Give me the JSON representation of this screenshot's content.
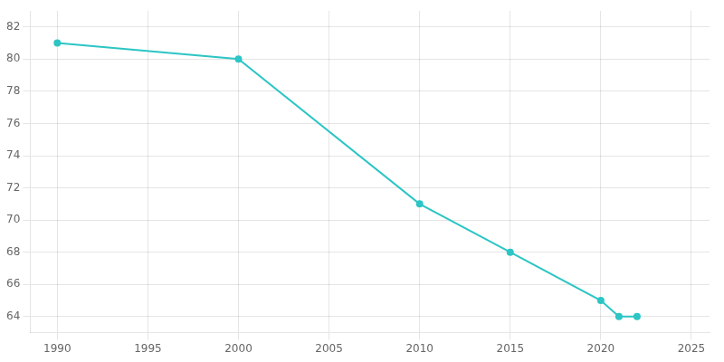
{
  "chart_data": {
    "type": "line",
    "x": [
      1990,
      2000,
      2010,
      2015,
      2020,
      2021,
      2022
    ],
    "values": [
      81,
      80,
      71,
      68,
      65,
      64,
      64
    ],
    "color": "#2DC5C5",
    "marker": "o",
    "xlim": [
      1988.5,
      2026
    ],
    "ylim": [
      63.0,
      83.0
    ],
    "xticks": [
      1990,
      1995,
      2000,
      2005,
      2010,
      2015,
      2020,
      2025
    ],
    "yticks": [
      64,
      66,
      68,
      70,
      72,
      74,
      76,
      78,
      80,
      82
    ],
    "grid": true
  }
}
